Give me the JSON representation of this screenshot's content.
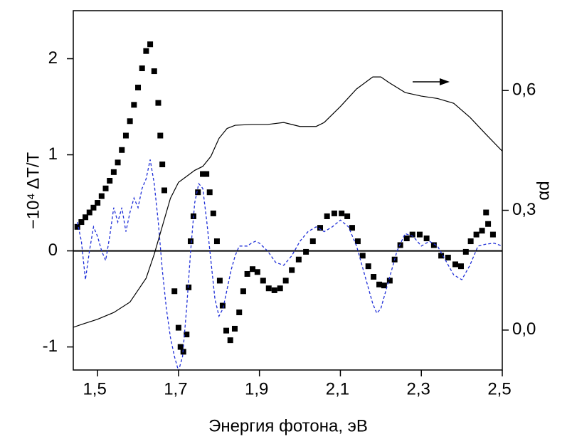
{
  "chart_data": {
    "type": "line",
    "x_label": "Энергия фотона, эВ",
    "y_label": "−10⁴ ΔT/T",
    "y2_label": "αd",
    "xlim": [
      1.44,
      2.5
    ],
    "xticks": [
      {
        "value": 1.5,
        "label": "1,5"
      },
      {
        "value": 1.7,
        "label": "1,7"
      },
      {
        "value": 1.9,
        "label": "1,9"
      },
      {
        "value": 2.1,
        "label": "2,1"
      },
      {
        "value": 2.3,
        "label": "2,3"
      },
      {
        "value": 2.5,
        "label": "2,5"
      }
    ],
    "ylim": [
      -1.24,
      2.5
    ],
    "yticks": [
      -1,
      0,
      1,
      2
    ],
    "y2lim": [
      -0.1,
      0.8
    ],
    "y2ticks": [
      {
        "value": 0,
        "label": "0,0"
      },
      {
        "value": 0.3,
        "label": "0,3"
      },
      {
        "value": 0.6,
        "label": "0,6"
      }
    ],
    "hline": 0,
    "series": [
      {
        "color": "#000000",
        "marker": "square",
        "linestyle": "none",
        "x": [
          1.45,
          1.46,
          1.47,
          1.48,
          1.49,
          1.5,
          1.51,
          1.52,
          1.53,
          1.54,
          1.55,
          1.56,
          1.57,
          1.58,
          1.59,
          1.6,
          1.61,
          1.62,
          1.63,
          1.64,
          1.65,
          1.655,
          1.66,
          1.665,
          1.69,
          1.7,
          1.705,
          1.712,
          1.72,
          1.725,
          1.73,
          1.737,
          1.748,
          1.76,
          1.769,
          1.777,
          1.786,
          1.795,
          1.802,
          1.809,
          1.818,
          1.828,
          1.839,
          1.85,
          1.86,
          1.87,
          1.883,
          1.895,
          1.909,
          1.923,
          1.937,
          1.951,
          1.965,
          1.98,
          1.997,
          2.015,
          2.032,
          2.05,
          2.067,
          2.085,
          2.103,
          2.117,
          2.129,
          2.143,
          2.155,
          2.169,
          2.182,
          2.196,
          2.208,
          2.222,
          2.234,
          2.248,
          2.264,
          2.278,
          2.296,
          2.313,
          2.331,
          2.349,
          2.366,
          2.384,
          2.398,
          2.41,
          2.422,
          2.436,
          2.45,
          2.46,
          2.465,
          2.477
        ],
        "values": [
          0.25,
          0.3,
          0.35,
          0.4,
          0.45,
          0.5,
          0.57,
          0.65,
          0.73,
          0.82,
          0.92,
          1.05,
          1.2,
          1.35,
          1.52,
          1.7,
          1.9,
          2.08,
          2.15,
          1.87,
          1.54,
          1.2,
          0.9,
          0.63,
          -0.42,
          -0.8,
          -1.0,
          -1.05,
          -0.87,
          -0.38,
          0.1,
          0.36,
          0.61,
          0.8,
          0.8,
          0.61,
          0.39,
          0.1,
          -0.31,
          -0.57,
          -0.83,
          -0.93,
          -0.81,
          -0.64,
          -0.42,
          -0.24,
          -0.19,
          -0.22,
          -0.31,
          -0.39,
          -0.41,
          -0.39,
          -0.31,
          -0.2,
          -0.09,
          -0.01,
          0.1,
          0.24,
          0.36,
          0.39,
          0.39,
          0.36,
          0.24,
          0.1,
          -0.05,
          -0.16,
          -0.27,
          -0.35,
          -0.36,
          -0.31,
          -0.09,
          0.06,
          0.13,
          0.17,
          0.17,
          0.13,
          0.06,
          -0.05,
          -0.07,
          -0.14,
          -0.16,
          -0.01,
          0.1,
          0.17,
          0.21,
          0.4,
          0.28,
          0.17
        ]
      },
      {
        "color": "#1f2fd8",
        "marker": "none",
        "linestyle": "dashed",
        "x": [
          1.45,
          1.46,
          1.47,
          1.48,
          1.49,
          1.5,
          1.51,
          1.52,
          1.53,
          1.54,
          1.55,
          1.56,
          1.57,
          1.58,
          1.59,
          1.6,
          1.61,
          1.62,
          1.63,
          1.64,
          1.65,
          1.66,
          1.67,
          1.68,
          1.69,
          1.7,
          1.71,
          1.72,
          1.73,
          1.74,
          1.75,
          1.76,
          1.77,
          1.78,
          1.79,
          1.8,
          1.81,
          1.82,
          1.83,
          1.84,
          1.85,
          1.86,
          1.87,
          1.88,
          1.89,
          1.9,
          1.92,
          1.94,
          1.96,
          1.98,
          2.0,
          2.02,
          2.04,
          2.06,
          2.08,
          2.1,
          2.12,
          2.14,
          2.16,
          2.18,
          2.19,
          2.2,
          2.22,
          2.24,
          2.26,
          2.28,
          2.3,
          2.32,
          2.34,
          2.36,
          2.38,
          2.4,
          2.42,
          2.44,
          2.46,
          2.48,
          2.5
        ],
        "values": [
          0.3,
          0.1,
          -0.3,
          0.0,
          0.25,
          0.15,
          0.0,
          -0.1,
          0.15,
          0.45,
          0.3,
          0.45,
          0.2,
          0.4,
          0.55,
          0.45,
          0.65,
          0.75,
          0.95,
          0.7,
          0.3,
          -0.2,
          -0.6,
          -0.9,
          -1.1,
          -1.25,
          -1.1,
          -0.6,
          0.0,
          0.5,
          0.7,
          0.65,
          0.3,
          -0.1,
          -0.5,
          -0.68,
          -0.6,
          -0.4,
          -0.2,
          -0.05,
          0.05,
          0.05,
          0.05,
          0.08,
          0.1,
          0.08,
          0.0,
          -0.12,
          -0.15,
          -0.05,
          0.1,
          0.2,
          0.25,
          0.2,
          0.25,
          0.32,
          0.25,
          0.05,
          -0.25,
          -0.55,
          -0.65,
          -0.6,
          -0.3,
          0.0,
          0.18,
          0.15,
          0.05,
          0.1,
          0.05,
          -0.1,
          -0.25,
          -0.3,
          -0.15,
          0.05,
          0.07,
          0.08,
          0.05
        ]
      },
      {
        "color": "#000000",
        "marker": "none",
        "linestyle": "solid",
        "axis": "y2",
        "x": [
          1.44,
          1.46,
          1.5,
          1.54,
          1.58,
          1.6,
          1.62,
          1.64,
          1.66,
          1.68,
          1.7,
          1.72,
          1.74,
          1.76,
          1.78,
          1.8,
          1.82,
          1.84,
          1.88,
          1.92,
          1.96,
          2.0,
          2.04,
          2.06,
          2.1,
          2.14,
          2.18,
          2.2,
          2.22,
          2.26,
          2.3,
          2.34,
          2.38,
          2.42,
          2.46,
          2.5
        ],
        "values": [
          0.007,
          0.014,
          0.027,
          0.044,
          0.07,
          0.1,
          0.13,
          0.19,
          0.26,
          0.33,
          0.37,
          0.385,
          0.4,
          0.41,
          0.435,
          0.48,
          0.505,
          0.513,
          0.515,
          0.515,
          0.52,
          0.51,
          0.51,
          0.52,
          0.56,
          0.604,
          0.634,
          0.634,
          0.62,
          0.595,
          0.586,
          0.58,
          0.568,
          0.533,
          0.49,
          0.448
        ]
      }
    ]
  }
}
